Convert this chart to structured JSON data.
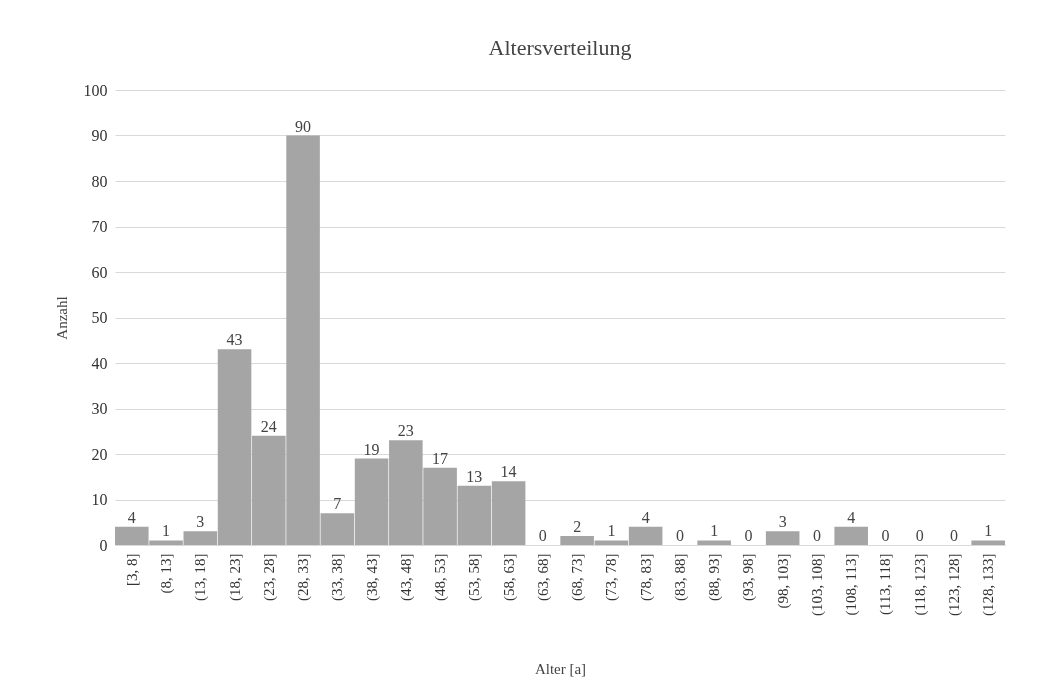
{
  "chart_data": {
    "type": "bar",
    "title": "Altersverteilung",
    "xlabel": "Alter [a]",
    "ylabel": "Anzahl",
    "categories": [
      "[3, 8]",
      "(8, 13]",
      "(13, 18]",
      "(18, 23]",
      "(23, 28]",
      "(28, 33]",
      "(33, 38]",
      "(38, 43]",
      "(43, 48]",
      "(48, 53]",
      "(53, 58]",
      "(58, 63]",
      "(63, 68]",
      "(68, 73]",
      "(73, 78]",
      "(78, 83]",
      "(83, 88]",
      "(88, 93]",
      "(93, 98]",
      "(98, 103]",
      "(103, 108]",
      "(108, 113]",
      "(113, 118]",
      "(118, 123]",
      "(123, 128]",
      "(128, 133]"
    ],
    "values": [
      4,
      1,
      3,
      43,
      24,
      90,
      7,
      19,
      23,
      17,
      13,
      14,
      0,
      2,
      1,
      4,
      0,
      1,
      0,
      3,
      0,
      4,
      0,
      0,
      0,
      1
    ],
    "color": "#a5a5a5",
    "ylim": [
      0,
      100
    ],
    "yticks": [
      0,
      10,
      20,
      30,
      40,
      50,
      60,
      70,
      80,
      90,
      100
    ],
    "grid": "y",
    "data_labels": true
  }
}
